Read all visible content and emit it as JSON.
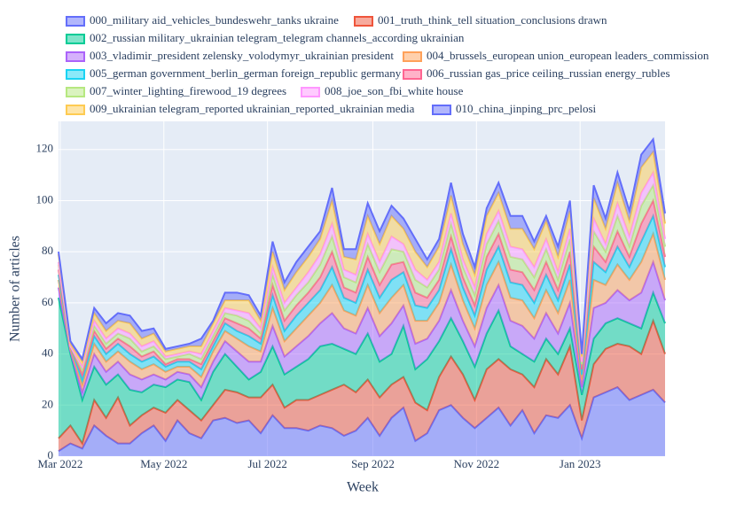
{
  "chart_data": {
    "type": "stacked_area",
    "x_label": "Week",
    "y_label": "Number of articles",
    "x": [
      "2022-02-28",
      "2022-03-07",
      "2022-03-14",
      "2022-03-21",
      "2022-03-28",
      "2022-04-04",
      "2022-04-11",
      "2022-04-18",
      "2022-04-25",
      "2022-05-02",
      "2022-05-09",
      "2022-05-16",
      "2022-05-23",
      "2022-05-30",
      "2022-06-06",
      "2022-06-13",
      "2022-06-20",
      "2022-06-27",
      "2022-07-04",
      "2022-07-11",
      "2022-07-18",
      "2022-07-25",
      "2022-08-01",
      "2022-08-08",
      "2022-08-15",
      "2022-08-22",
      "2022-08-29",
      "2022-09-05",
      "2022-09-12",
      "2022-09-19",
      "2022-09-26",
      "2022-10-03",
      "2022-10-10",
      "2022-10-17",
      "2022-10-24",
      "2022-10-31",
      "2022-11-07",
      "2022-11-14",
      "2022-11-21",
      "2022-11-28",
      "2022-12-05",
      "2022-12-12",
      "2022-12-19",
      "2022-12-26",
      "2023-01-02",
      "2023-01-09",
      "2023-01-16",
      "2023-01-23",
      "2023-01-30",
      "2023-02-06",
      "2023-02-13",
      "2023-02-20"
    ],
    "xlim": [
      "2022-02-28",
      "2023-02-20"
    ],
    "xticks": [
      {
        "value": "2022-03-01",
        "label": "Mar 2022"
      },
      {
        "value": "2022-05-01",
        "label": "May 2022"
      },
      {
        "value": "2022-07-01",
        "label": "Jul 2022"
      },
      {
        "value": "2022-09-01",
        "label": "Sep 2022"
      },
      {
        "value": "2022-11-01",
        "label": "Nov 2022"
      },
      {
        "value": "2023-01-01",
        "label": "Jan 2023"
      }
    ],
    "ylim": [
      0,
      131
    ],
    "yticks": [
      0,
      20,
      40,
      60,
      80,
      100,
      120
    ],
    "grid": true,
    "series": [
      {
        "name": "000_military aid_vehicles_bundeswehr_tanks ukraine",
        "color": "#636efa",
        "values": [
          2,
          5,
          3,
          12,
          8,
          5,
          5,
          9,
          12,
          6,
          14,
          9,
          7,
          14,
          15,
          13,
          14,
          9,
          16,
          11,
          11,
          10,
          12,
          11,
          8,
          10,
          15,
          8,
          15,
          19,
          6,
          9,
          18,
          20,
          15,
          11,
          15,
          19,
          12,
          18,
          9,
          16,
          15,
          20,
          7,
          23,
          25,
          27,
          22,
          24,
          26,
          21
        ]
      },
      {
        "name": "001_truth_think_tell situation_conclusions drawn",
        "color": "#ef553b",
        "values": [
          5,
          7,
          2,
          10,
          7,
          18,
          7,
          7,
          7,
          11,
          8,
          9,
          7,
          6,
          11,
          12,
          9,
          14,
          12,
          8,
          11,
          12,
          12,
          15,
          20,
          15,
          15,
          15,
          13,
          12,
          15,
          9,
          13,
          19,
          17,
          11,
          19,
          19,
          22,
          14,
          18,
          22,
          17,
          23,
          7,
          13,
          17,
          17,
          21,
          16,
          27,
          19
        ]
      },
      {
        "name": "002_russian military_ukrainian telegram_telegram channels_according ukrainian",
        "color": "#00cc96",
        "values": [
          55,
          28,
          17,
          13,
          13,
          9,
          14,
          9,
          9,
          10,
          8,
          11,
          8,
          13,
          14,
          10,
          7,
          10,
          15,
          13,
          13,
          16,
          19,
          18,
          14,
          15,
          18,
          14,
          12,
          20,
          13,
          20,
          14,
          15,
          13,
          13,
          14,
          19,
          9,
          8,
          10,
          8,
          8,
          7,
          10,
          10,
          10,
          10,
          9,
          10,
          11,
          12
        ]
      },
      {
        "name": "003_vladimir_president zelensky_volodymyr_ukrainian president",
        "color": "#ab63fa",
        "values": [
          4,
          1,
          3,
          5,
          5,
          5,
          6,
          5,
          4,
          3,
          3,
          3,
          5,
          4,
          5,
          6,
          7,
          4,
          8,
          7,
          8,
          9,
          9,
          12,
          8,
          8,
          10,
          10,
          12,
          8,
          10,
          8,
          8,
          11,
          8,
          8,
          10,
          10,
          10,
          11,
          9,
          10,
          8,
          10,
          3,
          12,
          8,
          11,
          9,
          14,
          12,
          9
        ]
      },
      {
        "name": "004_brussels_european union_european leaders_commission",
        "color": "#ffa15a",
        "values": [
          3,
          1,
          3,
          4,
          4,
          4,
          5,
          4,
          4,
          3,
          2,
          3,
          4,
          4,
          4,
          5,
          6,
          4,
          7,
          6,
          7,
          8,
          8,
          11,
          7,
          7,
          9,
          9,
          10,
          8,
          9,
          7,
          7,
          10,
          8,
          7,
          9,
          9,
          9,
          10,
          8,
          9,
          8,
          9,
          3,
          11,
          7,
          10,
          8,
          12,
          11,
          8
        ]
      },
      {
        "name": "005_german government_berlin_german foreign_republic germany",
        "color": "#19d3f3",
        "values": [
          2,
          1,
          2,
          3,
          3,
          3,
          3,
          3,
          3,
          2,
          2,
          2,
          3,
          2,
          3,
          3,
          4,
          3,
          5,
          4,
          5,
          5,
          5,
          7,
          5,
          5,
          6,
          6,
          7,
          5,
          6,
          5,
          5,
          6,
          5,
          5,
          6,
          6,
          6,
          6,
          6,
          6,
          5,
          6,
          2,
          7,
          5,
          7,
          5,
          8,
          7,
          5
        ]
      },
      {
        "name": "006_russian gas_price ceiling_russian energy_rubles",
        "color": "#ff6692",
        "values": [
          2,
          0,
          2,
          2,
          2,
          2,
          3,
          2,
          2,
          1,
          1,
          1,
          2,
          2,
          2,
          3,
          3,
          2,
          4,
          4,
          4,
          4,
          5,
          6,
          4,
          4,
          5,
          5,
          6,
          4,
          5,
          4,
          4,
          5,
          4,
          4,
          5,
          5,
          5,
          5,
          5,
          5,
          4,
          5,
          2,
          6,
          4,
          6,
          4,
          7,
          6,
          4
        ]
      },
      {
        "name": "007_winter_lighting_firewood_19 degrees",
        "color": "#b6e880",
        "values": [
          2,
          0,
          2,
          2,
          2,
          2,
          3,
          2,
          2,
          2,
          1,
          2,
          2,
          2,
          2,
          3,
          3,
          2,
          4,
          4,
          4,
          4,
          5,
          6,
          4,
          4,
          5,
          5,
          6,
          4,
          5,
          4,
          4,
          5,
          4,
          4,
          5,
          5,
          5,
          5,
          5,
          5,
          4,
          5,
          2,
          6,
          4,
          6,
          4,
          7,
          6,
          4
        ]
      },
      {
        "name": "008_joe_son_fbi_white house",
        "color": "#ff97ff",
        "values": [
          1,
          0,
          1,
          2,
          2,
          2,
          2,
          2,
          2,
          1,
          1,
          1,
          2,
          2,
          2,
          2,
          3,
          2,
          3,
          3,
          3,
          4,
          4,
          5,
          3,
          3,
          4,
          4,
          5,
          3,
          4,
          3,
          3,
          4,
          3,
          3,
          4,
          4,
          4,
          4,
          4,
          4,
          3,
          4,
          1,
          5,
          3,
          5,
          4,
          5,
          5,
          3
        ]
      },
      {
        "name": "009_ukrainian telegram_reported ukrainian_reported_ukrainian media",
        "color": "#fecb52",
        "values": [
          3,
          1,
          2,
          3,
          3,
          3,
          4,
          3,
          3,
          2,
          2,
          2,
          3,
          3,
          3,
          4,
          5,
          3,
          6,
          5,
          6,
          6,
          6,
          9,
          5,
          6,
          7,
          7,
          8,
          6,
          7,
          5,
          6,
          7,
          6,
          5,
          7,
          7,
          7,
          8,
          7,
          7,
          6,
          7,
          2,
          8,
          6,
          8,
          6,
          10,
          8,
          6
        ]
      },
      {
        "name": "010_china_jinping_prc_pelosi",
        "color": "#636efa",
        "values": [
          1,
          1,
          1,
          2,
          3,
          3,
          3,
          3,
          2,
          1,
          1,
          1,
          3,
          1,
          3,
          3,
          2,
          2,
          4,
          3,
          4,
          4,
          3,
          5,
          3,
          4,
          5,
          5,
          4,
          4,
          5,
          3,
          3,
          5,
          4,
          3,
          3,
          4,
          5,
          5,
          3,
          2,
          4,
          4,
          1,
          5,
          4,
          4,
          4,
          5,
          5,
          4
        ]
      }
    ]
  }
}
